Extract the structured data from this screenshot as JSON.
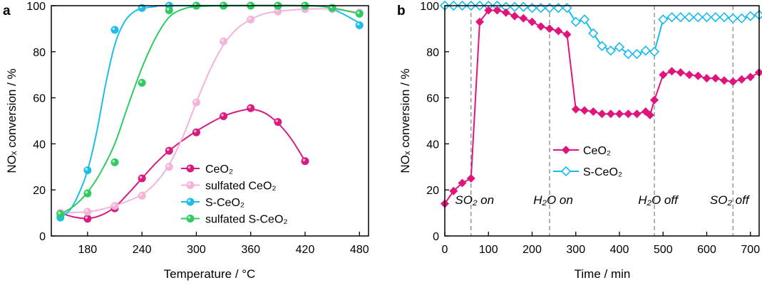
{
  "chart_data": [
    {
      "panel": "a",
      "type": "scatter",
      "xlabel": "Temperature / °C",
      "ylabel": "NOₓ conversion / %",
      "xlim": [
        140,
        490
      ],
      "ylim": [
        0,
        100
      ],
      "xticks": [
        180,
        240,
        300,
        360,
        420,
        480
      ],
      "yticks": [
        0,
        20,
        40,
        60,
        80,
        100
      ],
      "legend": "bottom-center",
      "grid": false,
      "series": [
        {
          "name": "CeO₂",
          "color": "#d81b7f",
          "points": [
            [
              150,
              10
            ],
            [
              180,
              7.5
            ],
            [
              210,
              12
            ],
            [
              240,
              25
            ],
            [
              270,
              37
            ],
            [
              300,
              45
            ],
            [
              330,
              52
            ],
            [
              360,
              55.5
            ],
            [
              390,
              49.5
            ],
            [
              420,
              32.5
            ]
          ],
          "curve": [
            [
              150,
              10
            ],
            [
              165,
              8.2
            ],
            [
              180,
              7.6
            ],
            [
              195,
              9
            ],
            [
              210,
              12.5
            ],
            [
              225,
              18.5
            ],
            [
              240,
              25
            ],
            [
              255,
              31.5
            ],
            [
              270,
              37
            ],
            [
              285,
              41.5
            ],
            [
              300,
              45.5
            ],
            [
              315,
              49
            ],
            [
              330,
              52
            ],
            [
              345,
              54
            ],
            [
              360,
              55
            ],
            [
              375,
              53.5
            ],
            [
              390,
              49
            ],
            [
              405,
              42
            ],
            [
              420,
              32.5
            ]
          ]
        },
        {
          "name": "sulfated CeO₂",
          "color": "#f4b3d9",
          "points": [
            [
              150,
              10
            ],
            [
              180,
              10.5
            ],
            [
              210,
              13
            ],
            [
              240,
              17.5
            ],
            [
              270,
              30
            ],
            [
              300,
              58
            ],
            [
              330,
              84.5
            ],
            [
              360,
              94
            ],
            [
              390,
              97.5
            ],
            [
              420,
              98.5
            ],
            [
              450,
              98.5
            ],
            [
              480,
              97
            ]
          ],
          "curve": [
            [
              150,
              10
            ],
            [
              180,
              10.5
            ],
            [
              200,
              12
            ],
            [
              220,
              14.5
            ],
            [
              240,
              18
            ],
            [
              255,
              23
            ],
            [
              270,
              31
            ],
            [
              285,
              43
            ],
            [
              300,
              58
            ],
            [
              315,
              72
            ],
            [
              330,
              83
            ],
            [
              345,
              90
            ],
            [
              360,
              94
            ],
            [
              375,
              96.5
            ],
            [
              390,
              97.5
            ],
            [
              420,
              98.5
            ],
            [
              450,
              98.5
            ],
            [
              480,
              97
            ]
          ]
        },
        {
          "name": "S-CeO₂",
          "color": "#1dbde8",
          "points": [
            [
              150,
              8
            ],
            [
              180,
              28.5
            ],
            [
              210,
              89.5
            ],
            [
              240,
              99
            ],
            [
              270,
              100
            ],
            [
              300,
              100
            ],
            [
              330,
              100
            ],
            [
              360,
              100
            ],
            [
              390,
              100
            ],
            [
              420,
              100
            ],
            [
              450,
              99
            ],
            [
              480,
              91.5
            ]
          ],
          "curve": [
            [
              150,
              8
            ],
            [
              160,
              11
            ],
            [
              170,
              18
            ],
            [
              180,
              28.5
            ],
            [
              190,
              45
            ],
            [
              200,
              66
            ],
            [
              210,
              83
            ],
            [
              220,
              92.5
            ],
            [
              230,
              97
            ],
            [
              240,
              98.8
            ],
            [
              255,
              99.6
            ],
            [
              270,
              100
            ],
            [
              420,
              100
            ],
            [
              450,
              98.5
            ],
            [
              480,
              92.5
            ]
          ]
        },
        {
          "name": "sulfated S-CeO₂",
          "color": "#2fca62",
          "points": [
            [
              150,
              9.5
            ],
            [
              180,
              18.5
            ],
            [
              210,
              32
            ],
            [
              240,
              66.5
            ],
            [
              270,
              98
            ],
            [
              300,
              100
            ],
            [
              330,
              100
            ],
            [
              360,
              100
            ],
            [
              390,
              100
            ],
            [
              420,
              100
            ],
            [
              450,
              99
            ],
            [
              480,
              96.5
            ]
          ],
          "curve": [
            [
              150,
              9.5
            ],
            [
              165,
              13
            ],
            [
              180,
              19
            ],
            [
              195,
              28
            ],
            [
              210,
              40
            ],
            [
              225,
              57
            ],
            [
              240,
              73
            ],
            [
              255,
              86
            ],
            [
              270,
              95
            ],
            [
              285,
              98.5
            ],
            [
              300,
              99.6
            ],
            [
              330,
              100
            ],
            [
              420,
              100
            ],
            [
              450,
              99
            ],
            [
              480,
              96.5
            ]
          ]
        }
      ]
    },
    {
      "panel": "b",
      "type": "line",
      "xlabel": "Time / min",
      "ylabel": "NOₓ conversion / %",
      "xlim": [
        0,
        720
      ],
      "ylim": [
        0,
        100
      ],
      "xticks": [
        0,
        100,
        200,
        300,
        400,
        500,
        600,
        700
      ],
      "yticks": [
        0,
        20,
        40,
        60,
        80,
        100
      ],
      "legend": "center-left",
      "grid": false,
      "series": [
        {
          "name": "CeO₂",
          "color": "#e0147d",
          "marker": "filled-diamond",
          "points": [
            [
              0,
              14
            ],
            [
              20,
              19.5
            ],
            [
              40,
              23
            ],
            [
              60,
              25
            ],
            [
              80,
              93
            ],
            [
              100,
              98
            ],
            [
              120,
              98
            ],
            [
              140,
              97
            ],
            [
              160,
              95.5
            ],
            [
              180,
              94.5
            ],
            [
              200,
              93
            ],
            [
              220,
              91
            ],
            [
              240,
              90
            ],
            [
              260,
              89
            ],
            [
              280,
              87.5
            ],
            [
              300,
              55
            ],
            [
              320,
              54.5
            ],
            [
              340,
              54
            ],
            [
              360,
              53
            ],
            [
              380,
              53
            ],
            [
              400,
              53
            ],
            [
              420,
              53
            ],
            [
              440,
              53
            ],
            [
              460,
              54
            ],
            [
              470,
              52.5
            ],
            [
              480,
              59
            ],
            [
              500,
              70
            ],
            [
              520,
              71.5
            ],
            [
              540,
              71
            ],
            [
              560,
              70
            ],
            [
              580,
              69.5
            ],
            [
              600,
              68.5
            ],
            [
              620,
              68.5
            ],
            [
              640,
              67.5
            ],
            [
              660,
              67
            ],
            [
              680,
              68
            ],
            [
              700,
              69
            ],
            [
              720,
              71
            ]
          ]
        },
        {
          "name": "S-CeO₂",
          "color": "#19b9ee",
          "marker": "open-diamond",
          "points": [
            [
              0,
              100
            ],
            [
              20,
              100
            ],
            [
              40,
              100
            ],
            [
              60,
              100
            ],
            [
              80,
              100
            ],
            [
              100,
              100
            ],
            [
              120,
              100
            ],
            [
              140,
              99.5
            ],
            [
              160,
              99.5
            ],
            [
              180,
              99.5
            ],
            [
              200,
              99
            ],
            [
              220,
              99
            ],
            [
              240,
              99
            ],
            [
              260,
              99
            ],
            [
              280,
              99
            ],
            [
              300,
              93
            ],
            [
              320,
              94
            ],
            [
              340,
              88
            ],
            [
              360,
              82.5
            ],
            [
              380,
              80.5
            ],
            [
              400,
              82
            ],
            [
              420,
              79
            ],
            [
              440,
              79
            ],
            [
              460,
              80.5
            ],
            [
              480,
              80
            ],
            [
              500,
              94
            ],
            [
              520,
              95
            ],
            [
              540,
              95
            ],
            [
              560,
              95
            ],
            [
              580,
              95
            ],
            [
              600,
              95
            ],
            [
              620,
              95
            ],
            [
              640,
              95
            ],
            [
              660,
              94.5
            ],
            [
              680,
              94.5
            ],
            [
              700,
              95.5
            ],
            [
              720,
              96
            ]
          ]
        }
      ],
      "vlines": [
        60,
        240,
        480,
        660
      ],
      "annotations": [
        {
          "label": "SO₂ on",
          "x": 60
        },
        {
          "label": "H₂O on",
          "x": 240
        },
        {
          "label": "H₂O off",
          "x": 480
        },
        {
          "label": "SO₂ off",
          "x": 660
        }
      ]
    }
  ]
}
